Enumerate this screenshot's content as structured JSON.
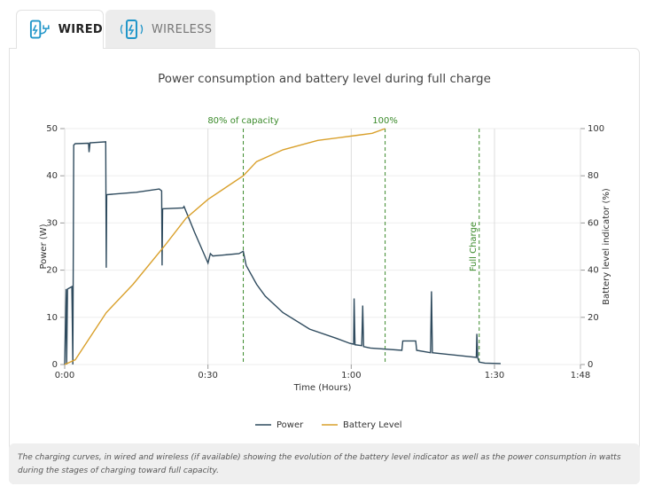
{
  "tabs": [
    "WIRED",
    "WIRELESS"
  ],
  "chart_data": {
    "type": "line",
    "title": "Power consumption and battery level during full charge",
    "xlabel": "Time (Hours)",
    "ylabel": "Power (W)",
    "y2label": "Battery level indicator (%)",
    "xlim": [
      0,
      108
    ],
    "xticks": [
      {
        "value": 0,
        "label": "0:00"
      },
      {
        "value": 30,
        "label": "0:30"
      },
      {
        "value": 60,
        "label": "1:00"
      },
      {
        "value": 90,
        "label": "1:30"
      },
      {
        "value": 108,
        "label": "1:48"
      }
    ],
    "ylim": [
      0,
      50
    ],
    "yticks": [
      0,
      10,
      20,
      30,
      40,
      50
    ],
    "y2lim": [
      0,
      100
    ],
    "y2ticks": [
      0,
      20,
      40,
      60,
      80,
      100
    ],
    "grid": true,
    "legend": "bottom",
    "series": [
      {
        "name": "Power",
        "color": "#2f4b5e",
        "x": [
          0,
          0.3,
          0.4,
          0.6,
          1.5,
          1.7,
          1.9,
          2.2,
          5,
          5.1,
          5.3,
          8.6,
          8.7,
          8.8,
          15,
          19.8,
          20.3,
          20.4,
          20.5,
          24.8,
          25,
          27.2,
          30,
          30.5,
          31,
          36.5,
          37.4,
          38,
          40.2,
          42,
          45.7,
          51.3,
          57,
          59.7,
          60.5,
          60.6,
          60.8,
          62.2,
          62.4,
          62.6,
          64,
          70.6,
          70.8,
          73.5,
          73.7,
          76.6,
          76.8,
          77,
          86.2,
          86.3,
          86.5,
          86.8,
          88,
          91.3
        ],
        "values": [
          0,
          16,
          0,
          16,
          16.5,
          0,
          46.5,
          46.8,
          46.9,
          45,
          47,
          47.2,
          20.5,
          36,
          36.5,
          37.2,
          36.8,
          21,
          33,
          33.2,
          33.5,
          28,
          21.5,
          23.5,
          23,
          23.5,
          24,
          21,
          17,
          14.5,
          11,
          7.5,
          5.5,
          4.5,
          4.3,
          14,
          4.2,
          4,
          12.5,
          3.8,
          3.5,
          3,
          5,
          5,
          3,
          2.5,
          15.5,
          2.5,
          1.5,
          6.5,
          1.4,
          0.5,
          0.3,
          0.2
        ]
      },
      {
        "name": "Battery Level",
        "color": "#d9a02b",
        "axis": "y2",
        "x": [
          0,
          2.2,
          8.7,
          14.3,
          20.8,
          25.4,
          30,
          37.4,
          40.2,
          45.7,
          53,
          60.6,
          64.4,
          67.1
        ],
        "values": [
          0,
          2,
          22,
          34,
          50,
          62,
          70,
          80,
          86,
          91,
          95,
          97,
          98,
          100
        ]
      }
    ],
    "annotations": [
      {
        "x": 37.4,
        "label": "80% of capacity"
      },
      {
        "x": 67.1,
        "label": "100%"
      },
      {
        "x": 86.8,
        "label": "Full Charge",
        "rotated": true
      }
    ]
  },
  "caption": "The charging curves, in wired and wireless (if available) showing the evolution of the battery level indicator as well as the power consumption in watts during the stages of charging toward full capacity."
}
